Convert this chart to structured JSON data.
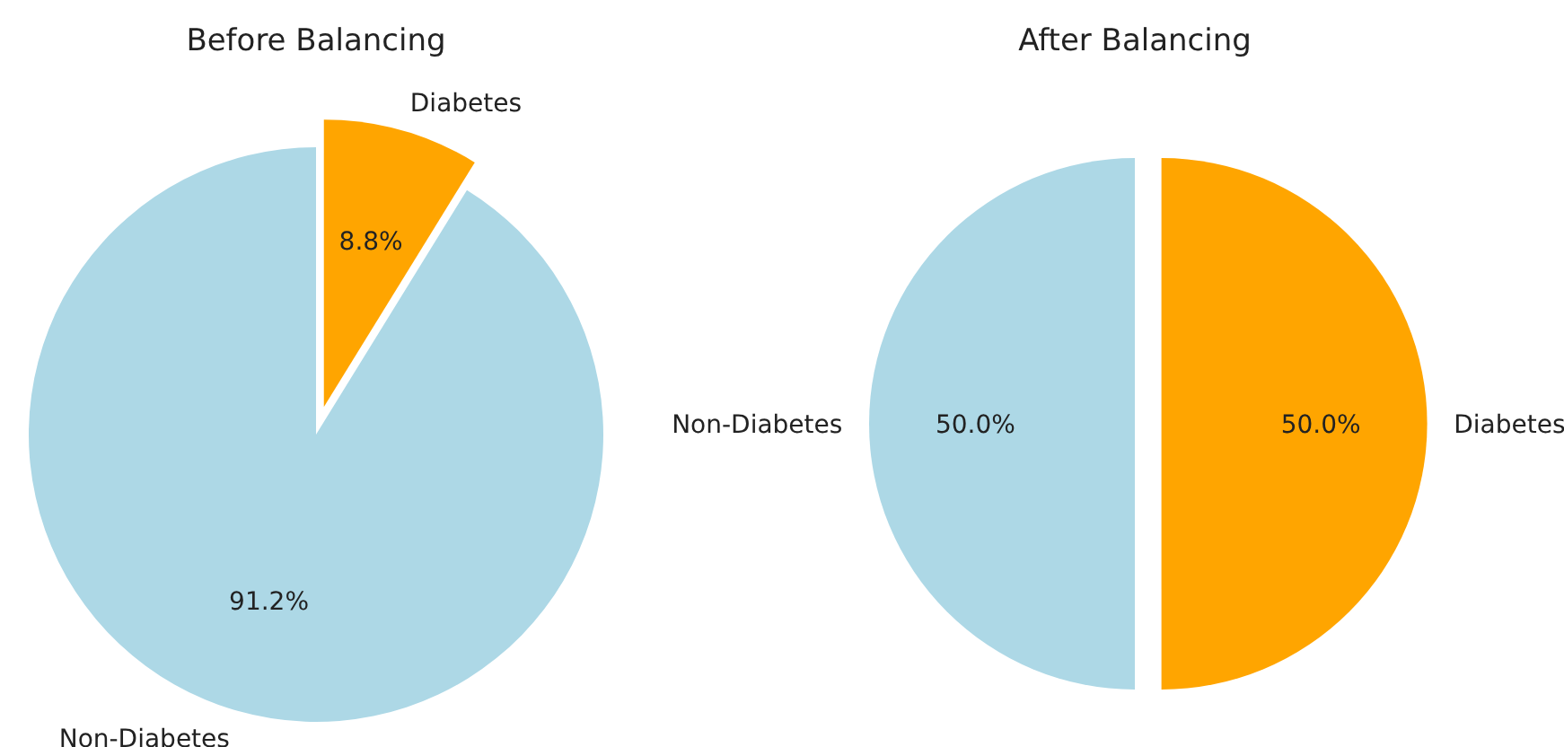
{
  "chart_data": [
    {
      "type": "pie",
      "title": "Before Balancing",
      "categories": [
        "Non-Diabetes",
        "Diabetes"
      ],
      "values": [
        91.2,
        8.8
      ],
      "value_labels": [
        "91.2%",
        "8.8%"
      ],
      "colors": [
        "#add8e6",
        "#ffa500"
      ]
    },
    {
      "type": "pie",
      "title": "After Balancing",
      "categories": [
        "Non-Diabetes",
        "Diabetes"
      ],
      "values": [
        50.0,
        50.0
      ],
      "value_labels": [
        "50.0%",
        "50.0%"
      ],
      "colors": [
        "#add8e6",
        "#ffa500"
      ]
    }
  ]
}
